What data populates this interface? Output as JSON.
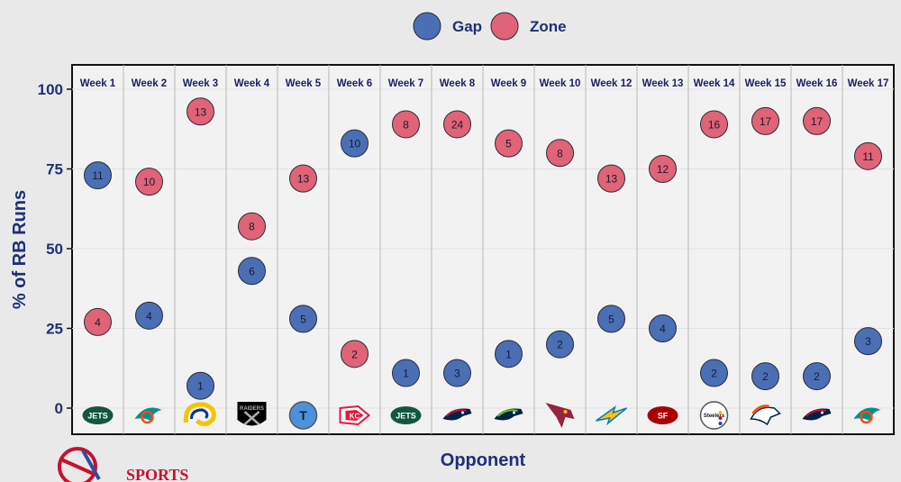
{
  "legend": [
    {
      "name": "Gap",
      "color": "#4a6fb5"
    },
    {
      "name": "Zone",
      "color": "#e06377"
    }
  ],
  "watermark_text": "SPORTS",
  "chart_data": {
    "type": "scatter",
    "xlabel": "Opponent",
    "ylabel": "% of RB Runs",
    "ylim": [
      0,
      100
    ],
    "yticks": [
      0,
      25,
      50,
      75,
      100
    ],
    "grid": true,
    "legend_position": "top-center",
    "categories": [
      "Week 1",
      "Week 2",
      "Week 3",
      "Week 4",
      "Week 5",
      "Week 6",
      "Week 7",
      "Week 8",
      "Week 9",
      "Week 10",
      "Week 12",
      "Week 13",
      "Week 14",
      "Week 15",
      "Week 16",
      "Week 17"
    ],
    "opponent_logos": [
      {
        "name": "jets-logo",
        "text": "JETS",
        "bg": "#125740",
        "fg": "#ffffff",
        "shape": "oval"
      },
      {
        "name": "dolphins-logo",
        "text": "⟋",
        "bg": "#008e97",
        "fg": "#fc4c02",
        "shape": "dolphin"
      },
      {
        "name": "rams-logo",
        "text": "Ⓢ",
        "bg": "#f3c500",
        "fg": "#003594",
        "shape": "horn"
      },
      {
        "name": "raiders-logo",
        "text": "RAIDERS",
        "bg": "#000000",
        "fg": "#a5acaf",
        "shape": "shield"
      },
      {
        "name": "titans-logo",
        "text": "T",
        "bg": "#4b92db",
        "fg": "#0c2340",
        "shape": "circle"
      },
      {
        "name": "chiefs-logo",
        "text": "KC",
        "bg": "#e31837",
        "fg": "#ffffff",
        "shape": "arrowhead"
      },
      {
        "name": "jets-logo",
        "text": "JETS",
        "bg": "#125740",
        "fg": "#ffffff",
        "shape": "oval"
      },
      {
        "name": "patriots-logo",
        "text": "◢",
        "bg": "#002244",
        "fg": "#c60c30",
        "shape": "head"
      },
      {
        "name": "seahawks-logo",
        "text": "◤",
        "bg": "#002244",
        "fg": "#69be28",
        "shape": "head"
      },
      {
        "name": "cardinals-logo",
        "text": "◣",
        "bg": "#97233f",
        "fg": "#ffffff",
        "shape": "bird"
      },
      {
        "name": "chargers-logo",
        "text": "⚡",
        "bg": "#ffc20e",
        "fg": "#0080c6",
        "shape": "bolt"
      },
      {
        "name": "49ers-logo",
        "text": "SF",
        "bg": "#aa0000",
        "fg": "#ffffff",
        "shape": "oval"
      },
      {
        "name": "steelers-logo",
        "text": "Steelers",
        "bg": "#ffffff",
        "fg": "#101820",
        "shape": "circle"
      },
      {
        "name": "broncos-logo",
        "text": "◥",
        "bg": "#fb4f14",
        "fg": "#002244",
        "shape": "horse"
      },
      {
        "name": "patriots-logo",
        "text": "◢",
        "bg": "#002244",
        "fg": "#c60c30",
        "shape": "head"
      },
      {
        "name": "dolphins-logo",
        "text": "⟋",
        "bg": "#008e97",
        "fg": "#fc4c02",
        "shape": "dolphin"
      }
    ],
    "series": [
      {
        "name": "Gap",
        "color": "#4a6fb5",
        "values": [
          73,
          29,
          7,
          43,
          28,
          83,
          11,
          11,
          17,
          20,
          28,
          25,
          11,
          10,
          10,
          21
        ],
        "labels": [
          "11",
          "4",
          "1",
          "6",
          "5",
          "10",
          "1",
          "3",
          "1",
          "2",
          "5",
          "4",
          "2",
          "2",
          "2",
          "3"
        ]
      },
      {
        "name": "Zone",
        "color": "#e06377",
        "values": [
          27,
          71,
          93,
          57,
          72,
          17,
          89,
          89,
          83,
          80,
          72,
          75,
          89,
          90,
          90,
          79
        ],
        "labels": [
          "4",
          "10",
          "13",
          "8",
          "13",
          "2",
          "8",
          "24",
          "5",
          "8",
          "13",
          "12",
          "16",
          "17",
          "17",
          "11"
        ]
      }
    ]
  }
}
